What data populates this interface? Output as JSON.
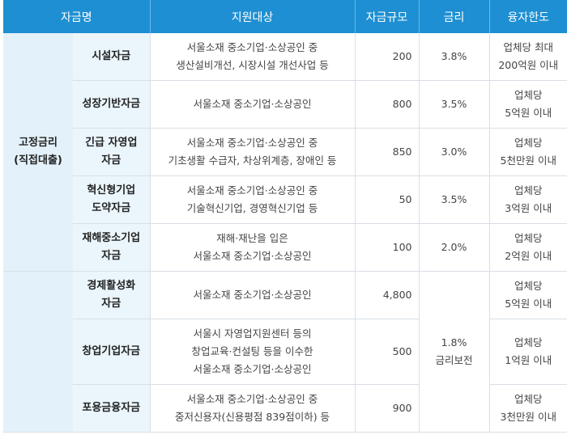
{
  "headers": [
    "자금명",
    "지원대상",
    "자금규모",
    "금리",
    "융자한도"
  ],
  "groups": [
    {
      "label_lines": [
        "고정금리",
        "(직접대출)"
      ]
    },
    {
      "label_lines": []
    }
  ],
  "rows": [
    {
      "name": [
        "시설자금"
      ],
      "target": [
        "서울소재 중소기업·소상공인 중",
        "생산설비개선, 시장시설 개선사업 등"
      ],
      "amount": "200",
      "rate": [
        "3.8%"
      ],
      "limit": [
        "업체당 최대",
        "200억원 이내"
      ]
    },
    {
      "name": [
        "성장기반자금"
      ],
      "target": [
        "서울소재 중소기업·소상공인"
      ],
      "amount": "800",
      "rate": [
        "3.5%"
      ],
      "limit": [
        "업체당",
        "5억원 이내"
      ]
    },
    {
      "name": [
        "긴급 자영업",
        "자금"
      ],
      "target": [
        "서울소재 중소기업·소상공인 중",
        "기초생활 수급자, 차상위계층, 장애인 등"
      ],
      "amount": "850",
      "rate": [
        "3.0%"
      ],
      "limit": [
        "업체당",
        "5천만원 이내"
      ]
    },
    {
      "name": [
        "혁신형기업",
        "도약자금"
      ],
      "target": [
        "서울소재 중소기업·소상공인 중",
        "기술혁신기업, 경영혁신기업 등"
      ],
      "amount": "50",
      "rate": [
        "3.5%"
      ],
      "limit": [
        "업체당",
        "3억원 이내"
      ]
    },
    {
      "name": [
        "재해중소기업",
        "자금"
      ],
      "target": [
        "재해·재난을 입은",
        "서울소재 중소기업·소상공인"
      ],
      "amount": "100",
      "rate": [
        "2.0%"
      ],
      "limit": [
        "업체당",
        "2억원 이내"
      ]
    },
    {
      "name": [
        "경제활성화",
        "자금"
      ],
      "target": [
        "서울소재 중소기업·소상공인"
      ],
      "amount": "4,800",
      "rate": [
        "1.8%",
        "금리보전"
      ],
      "limit": [
        "업체당",
        "5억원 이내"
      ]
    },
    {
      "name": [
        "창업기업자금"
      ],
      "target": [
        "서울시 자영업지원센터 등의",
        "창업교육·컨설팅 등을 이수한",
        "서울소재 중소기업·소상공인"
      ],
      "amount": "500",
      "rate": [],
      "limit": [
        "업체당",
        "1억원 이내"
      ]
    },
    {
      "name": [
        "포용금융자금"
      ],
      "target": [
        "서울소재 중소기업·소상공인 중",
        "중저신용자(신용평점 839점이하) 등"
      ],
      "amount": "900",
      "rate": [],
      "limit": [
        "업체당",
        "3천만원 이내"
      ]
    }
  ]
}
